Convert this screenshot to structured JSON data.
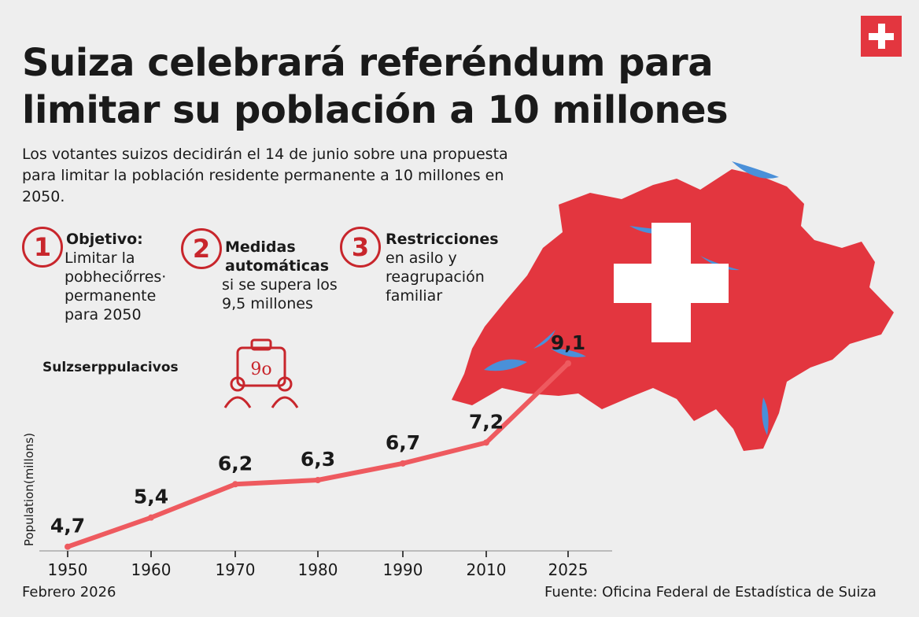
{
  "header": {
    "title": "Suiza celebrará referéndum para limitar su población a 10 millones",
    "subtitle": "Los votantes suizos decidirán el 14 de junio sobre una propuesta para limitar la población residente permanente a 10 millones en 2050."
  },
  "points": [
    {
      "number": "1",
      "title": "Objetivo:",
      "body": "Limitar la\npobheciőrres·\npermanente\npara 2050"
    },
    {
      "number": "2",
      "title": "Medidas\nautomáticas",
      "body": "si se supera los\n9,5 millones"
    },
    {
      "number": "3",
      "title": "Restricciones",
      "body": "en asilo y\nreagrupación\nfamiliar"
    }
  ],
  "caption": "Sulzserppulacivos",
  "icon": {
    "name": "people-percent-icon",
    "label": "9o"
  },
  "footer": {
    "date": "Febrero 2026",
    "source": "Fuente: Oficina Federal de Estadística de Suiza"
  },
  "colors": {
    "accent": "#c8262c",
    "map_red": "#e3363f",
    "line": "#ee5a5f",
    "lakes": "#4a90d9"
  },
  "chart_data": {
    "type": "line",
    "categories": [
      "1950",
      "1960",
      "1970",
      "1980",
      "1990",
      "2010",
      "2025"
    ],
    "values": [
      4.7,
      5.4,
      6.2,
      6.3,
      6.7,
      7.2,
      9.1
    ],
    "value_labels": [
      "4,7",
      "5,4",
      "6,2",
      "6,3",
      "6,7",
      "7,2",
      "9,1"
    ],
    "title": "",
    "xlabel": "",
    "ylabel": "Population(millons)",
    "ylim": [
      4.6,
      8.0
    ],
    "grid": false,
    "legend": "none"
  }
}
